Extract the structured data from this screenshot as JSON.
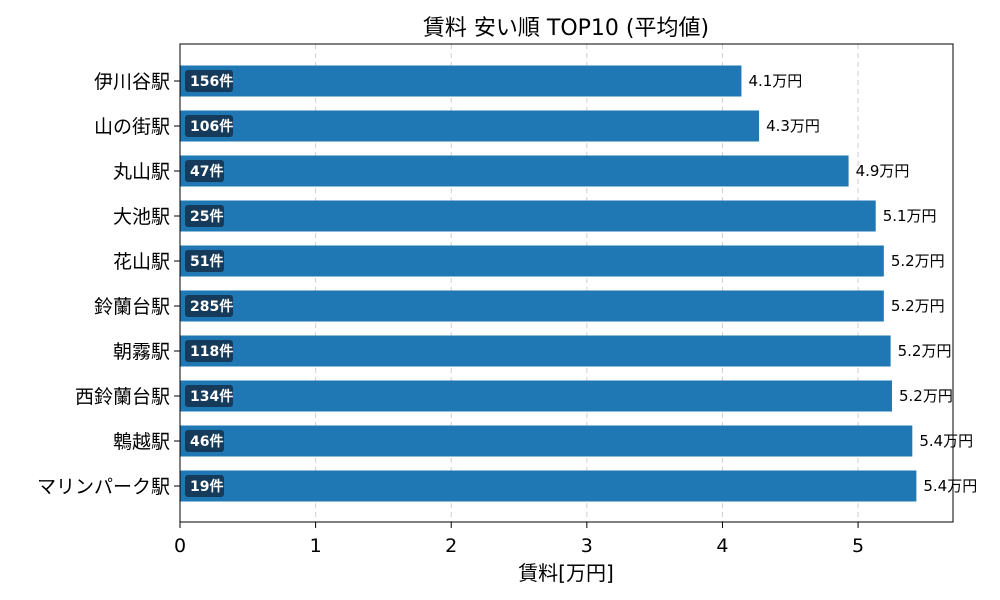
{
  "chart_data": {
    "type": "bar",
    "orientation": "horizontal",
    "title": "賃料 安い順 TOP10 (平均値)",
    "xlabel": "賃料[万円]",
    "ylabel": "",
    "xlim": [
      0,
      5.7
    ],
    "xticks": [
      "0",
      "1",
      "2",
      "3",
      "4",
      "5"
    ],
    "grid": "vertical-dashed",
    "colors": {
      "bar": "#1f77b4",
      "badge": "#163a5a"
    },
    "categories": [
      "伊川谷駅",
      "山の街駅",
      "丸山駅",
      "大池駅",
      "花山駅",
      "鈴蘭台駅",
      "朝霧駅",
      "西鈴蘭台駅",
      "鵯越駅",
      "マリンパーク駅"
    ],
    "values": [
      4.14,
      4.27,
      4.93,
      5.13,
      5.19,
      5.19,
      5.24,
      5.25,
      5.4,
      5.43
    ],
    "value_labels": [
      "4.1万円",
      "4.3万円",
      "4.9万円",
      "5.1万円",
      "5.2万円",
      "5.2万円",
      "5.2万円",
      "5.2万円",
      "5.4万円",
      "5.4万円"
    ],
    "counts": [
      "156件",
      "106件",
      "47件",
      "25件",
      "51件",
      "285件",
      "118件",
      "134件",
      "46件",
      "19件"
    ]
  }
}
